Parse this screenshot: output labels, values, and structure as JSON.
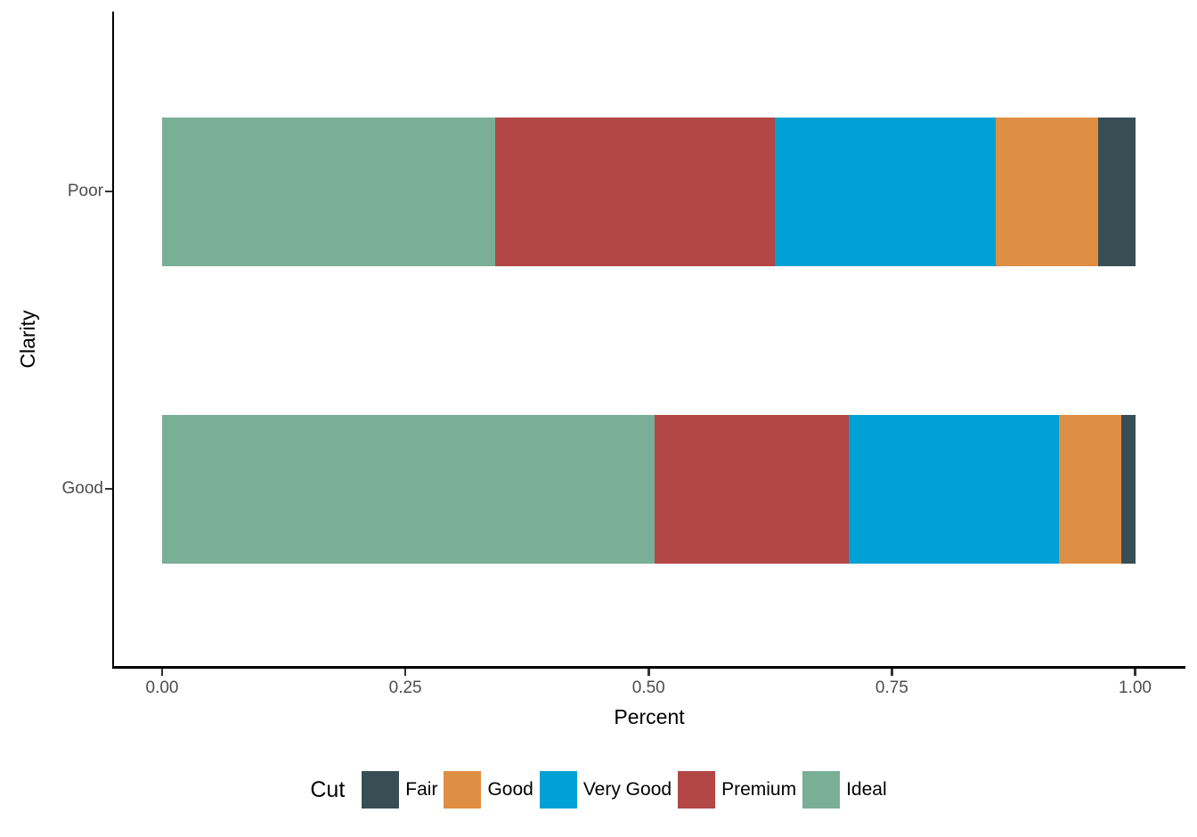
{
  "chart_data": {
    "type": "bar",
    "orientation": "horizontal",
    "stacked": true,
    "xlabel": "Percent",
    "ylabel": "Clarity",
    "xlim": [
      0,
      1
    ],
    "x_ticks": [
      0,
      0.25,
      0.5,
      0.75,
      1
    ],
    "x_tick_labels": [
      "0.00",
      "0.25",
      "0.50",
      "0.75",
      "1.00"
    ],
    "categories": [
      "Poor",
      "Good"
    ],
    "series": [
      {
        "name": "Ideal",
        "color": "#79AF97",
        "values": [
          0.342,
          0.506
        ]
      },
      {
        "name": "Premium",
        "color": "#B24745",
        "values": [
          0.288,
          0.2
        ]
      },
      {
        "name": "Very Good",
        "color": "#00A1D5",
        "values": [
          0.227,
          0.216
        ]
      },
      {
        "name": "Good",
        "color": "#DF8F44",
        "values": [
          0.105,
          0.064
        ]
      },
      {
        "name": "Fair",
        "color": "#374E55",
        "values": [
          0.038,
          0.014
        ]
      }
    ],
    "legend": {
      "title": "Cut",
      "position": "bottom",
      "entries": [
        {
          "label": "Fair",
          "color": "#374E55"
        },
        {
          "label": "Good",
          "color": "#DF8F44"
        },
        {
          "label": "Very Good",
          "color": "#00A1D5"
        },
        {
          "label": "Premium",
          "color": "#B24745"
        },
        {
          "label": "Ideal",
          "color": "#79AF97"
        }
      ]
    },
    "grid": false,
    "background": "#FFFFFF",
    "axis_color": "#000000",
    "tick_label_color": "#4D4D4D"
  }
}
